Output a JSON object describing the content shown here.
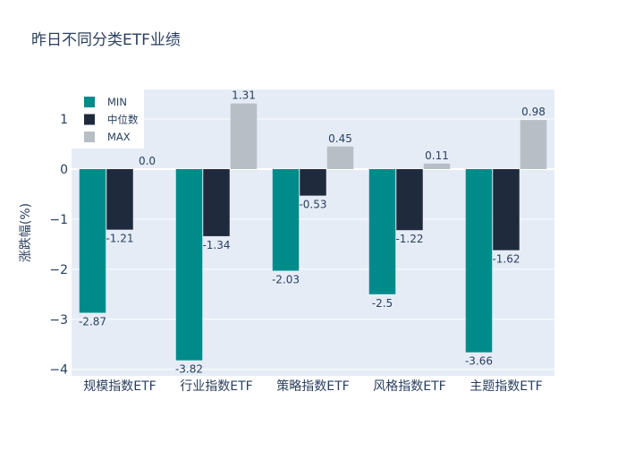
{
  "chart_data": {
    "type": "bar",
    "title": "昨日不同分类ETF业绩",
    "xlabel": "",
    "ylabel": "涨跌幅(%)",
    "ylim": [
      -4.13,
      1.59
    ],
    "yticks": [
      1,
      0,
      -1,
      -2,
      -3,
      -4
    ],
    "ytick_labels": [
      "1",
      "0",
      "−1",
      "−2",
      "−3",
      "−4"
    ],
    "grid": true,
    "legend_position": "top-left",
    "categories": [
      "规模指数ETF",
      "行业指数ETF",
      "策略指数ETF",
      "风格指数ETF",
      "主题指数ETF"
    ],
    "series": [
      {
        "name": "MIN",
        "color": "#008b8b",
        "values": [
          -2.87,
          -3.82,
          -2.03,
          -2.5,
          -3.66
        ],
        "labels": [
          "-2.87",
          "-3.82",
          "-2.03",
          "-2.5",
          "-3.66"
        ]
      },
      {
        "name": "中位数",
        "color": "#1f2a3c",
        "values": [
          -1.21,
          -1.34,
          -0.53,
          -1.22,
          -1.62
        ],
        "labels": [
          "-1.21",
          "-1.34",
          "-0.53",
          "-1.22",
          "-1.62"
        ]
      },
      {
        "name": "MAX",
        "color": "#b8bec6",
        "values": [
          0.0,
          1.31,
          0.45,
          0.11,
          0.98
        ],
        "labels": [
          "0.0",
          "1.31",
          "0.45",
          "0.11",
          "0.98"
        ]
      }
    ]
  }
}
